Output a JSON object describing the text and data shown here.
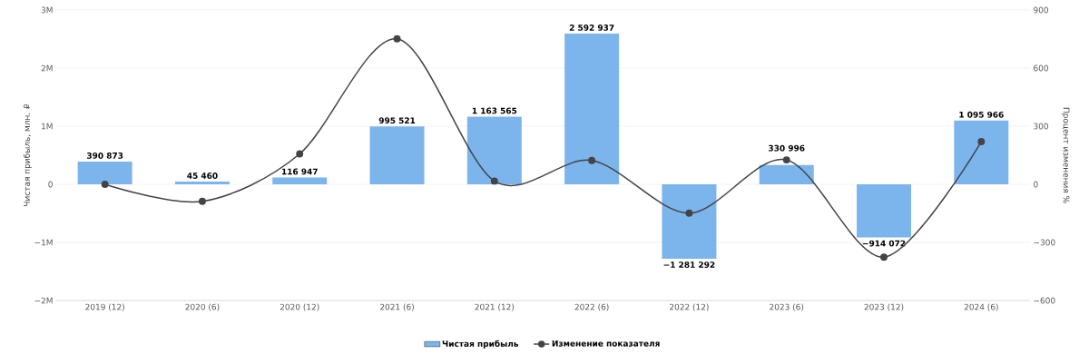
{
  "chart_data": {
    "type": "bar",
    "ylabel": "Чистая прибыль, млн. ₽",
    "y2label": "Процент изменения %",
    "categories": [
      "2019 (12)",
      "2020 (6)",
      "2020 (12)",
      "2021 (6)",
      "2021 (12)",
      "2022 (6)",
      "2022 (12)",
      "2023 (6)",
      "2023 (12)",
      "2024 (6)"
    ],
    "series": [
      {
        "name": "Чистая прибыль",
        "color": "#7cb5ec",
        "values": [
          390873,
          45460,
          116947,
          995521,
          1163565,
          2592937,
          -1281292,
          330996,
          -914072,
          1095966
        ],
        "value_labels": [
          "390 873",
          "45 460",
          "116 947",
          "995 521",
          "1 163 565",
          "2 592 937",
          "−1 281 292",
          "330 996",
          "−914 072",
          "1 095 966"
        ]
      },
      {
        "name": "Изменение показателя",
        "type": "line",
        "axis": "y2",
        "color": "#434348",
        "marker": "circle",
        "values": [
          0,
          -88,
          157,
          751,
          17,
          123,
          -149,
          126,
          -376,
          220
        ]
      }
    ],
    "ylim": [
      -2000000,
      3000000
    ],
    "yticks": [
      {
        "value": -2000000,
        "label": "−2M"
      },
      {
        "value": -1000000,
        "label": "−1M"
      },
      0,
      {
        "value": 1000000,
        "label": "1M"
      },
      {
        "value": 2000000,
        "label": "2M"
      },
      {
        "value": 3000000,
        "label": "3M"
      }
    ],
    "y2lim": [
      -600,
      900
    ],
    "y2ticks": [
      {
        "value": -600,
        "label": "−600"
      },
      {
        "value": -300,
        "label": "−300"
      },
      0,
      300,
      600,
      900
    ],
    "grid": "y",
    "legend": "bottom"
  }
}
